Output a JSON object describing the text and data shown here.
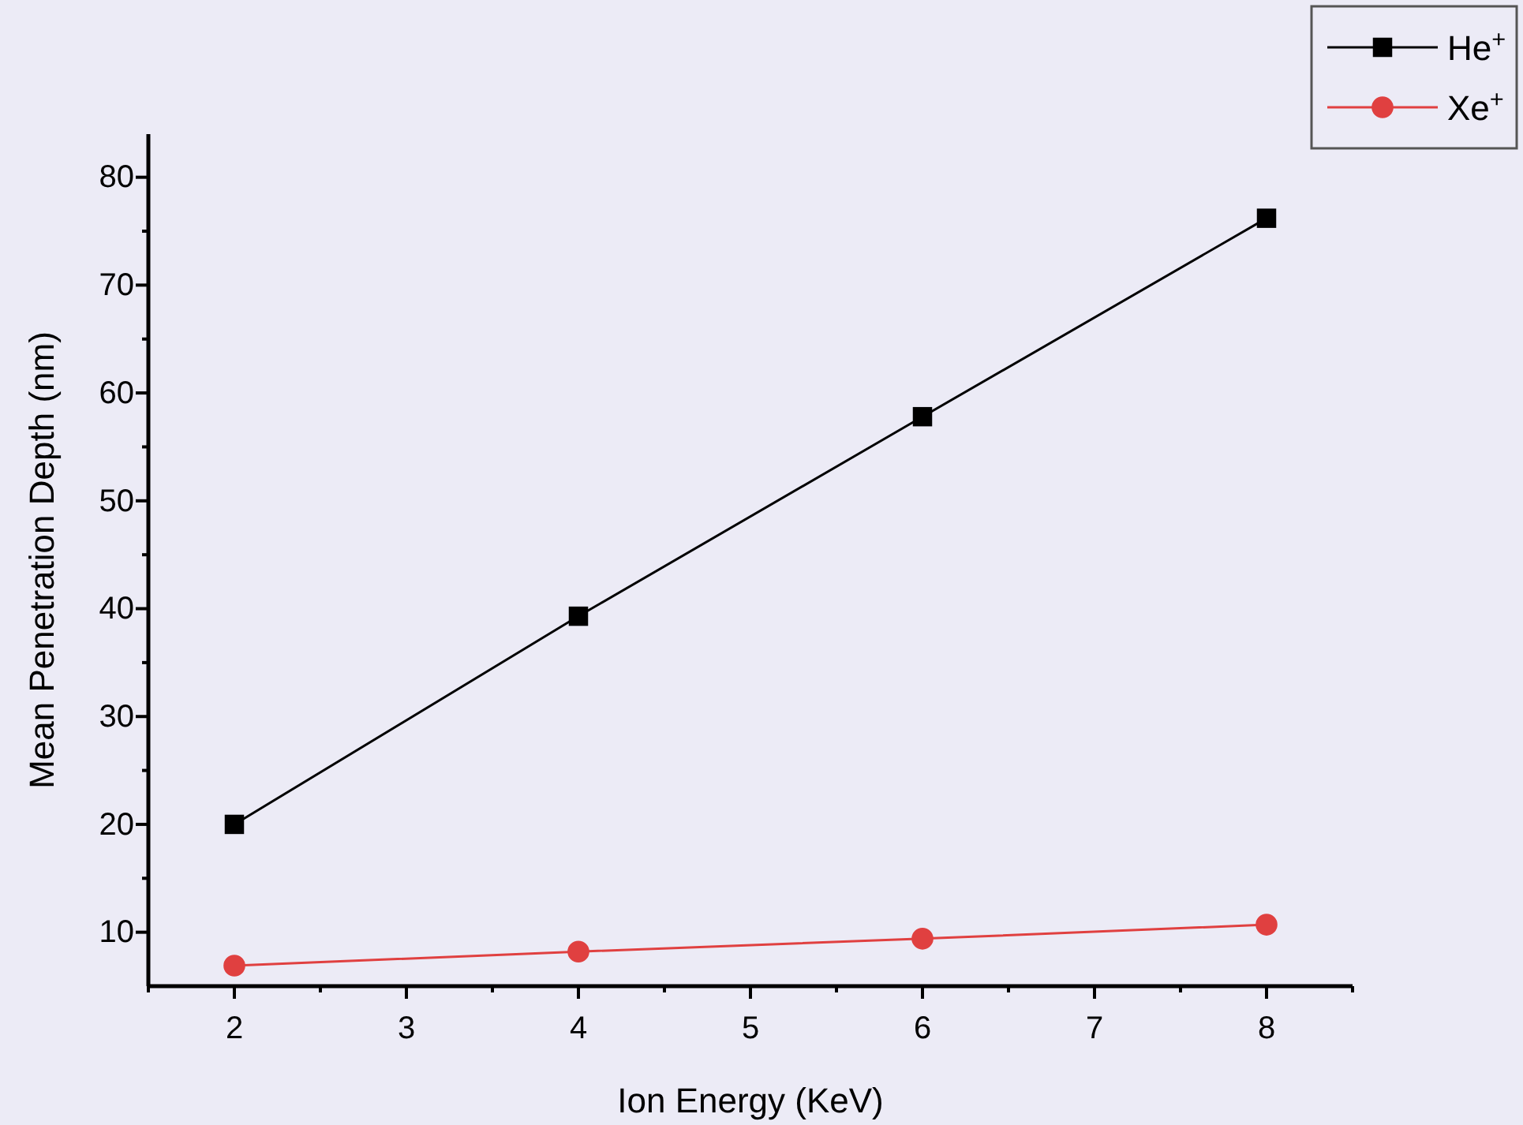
{
  "chart_data": {
    "type": "line",
    "xlabel": "Ion Energy (KeV)",
    "ylabel": "Mean Penetration Depth (nm)",
    "x": [
      2,
      4,
      6,
      8
    ],
    "series": [
      {
        "name": "He$^{+}$",
        "color": "#000000",
        "values": [
          20,
          39.3,
          57.8,
          76.2
        ],
        "marker": "square"
      },
      {
        "name": "Xe$^{+}$",
        "color": "#e04040",
        "values": [
          6.9,
          8.2,
          9.4,
          10.7
        ],
        "marker": "circle"
      }
    ],
    "xlim": [
      1.5,
      8.5
    ],
    "xticks": [
      {
        "value": 1.5,
        "label": null
      },
      2,
      {
        "value": 2.5,
        "label": null
      },
      3,
      {
        "value": 3.5,
        "label": null
      },
      4,
      {
        "value": 4.5,
        "label": null
      },
      5,
      {
        "value": 5.5,
        "label": null
      },
      6,
      {
        "value": 6.5,
        "label": null
      },
      7,
      {
        "value": 7.5,
        "label": null
      },
      8,
      {
        "value": 8.5,
        "label": null
      }
    ],
    "ylim": [
      5,
      84
    ],
    "yticks": [
      10,
      {
        "value": 15,
        "label": null
      },
      20,
      {
        "value": 25,
        "label": null
      },
      30,
      {
        "value": 35,
        "label": null
      },
      40,
      {
        "value": 45,
        "label": null
      },
      50,
      {
        "value": 55,
        "label": null
      },
      60,
      {
        "value": 65,
        "label": null
      },
      70,
      {
        "value": 75,
        "label": null
      },
      80
    ],
    "grid": false,
    "legend": "top right",
    "line_style": "solid"
  }
}
